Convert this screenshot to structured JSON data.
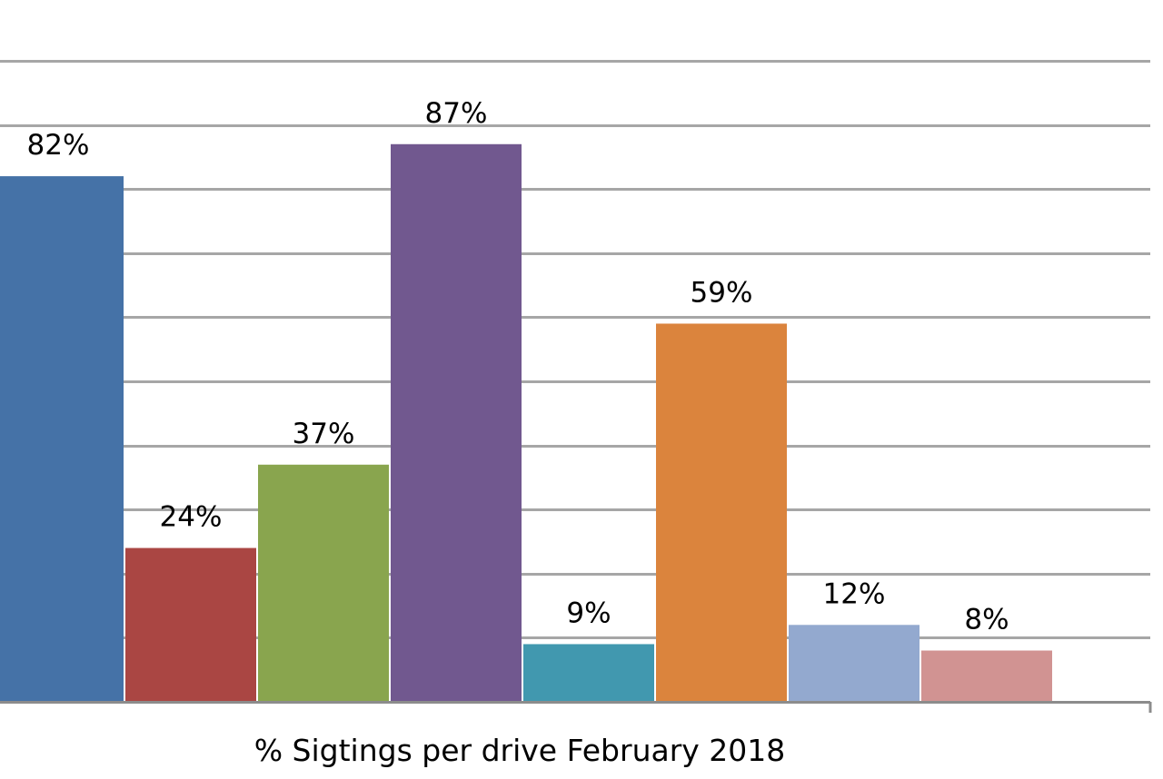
{
  "chart_data": {
    "type": "bar",
    "title": "",
    "xlabel": "% Sigtings per drive February 2018",
    "ylabel": "",
    "ylim": [
      0,
      110
    ],
    "grid_step": 10,
    "grid": true,
    "categories": [
      "",
      "",
      "",
      "",
      "",
      "",
      "",
      ""
    ],
    "values": [
      82,
      24,
      37,
      87,
      9,
      59,
      12,
      8
    ],
    "data_labels": [
      "82%",
      "24%",
      "37%",
      "87%",
      "9%",
      "59%",
      "12%",
      "8%"
    ],
    "colors": [
      "#4572a7",
      "#aa4643",
      "#89a54e",
      "#71588f",
      "#4198af",
      "#db843d",
      "#93a9cf",
      "#d19392"
    ],
    "gridline_color": "#a6a6a6",
    "axis_color": "#8c8c8c",
    "label_color": "#000000"
  }
}
